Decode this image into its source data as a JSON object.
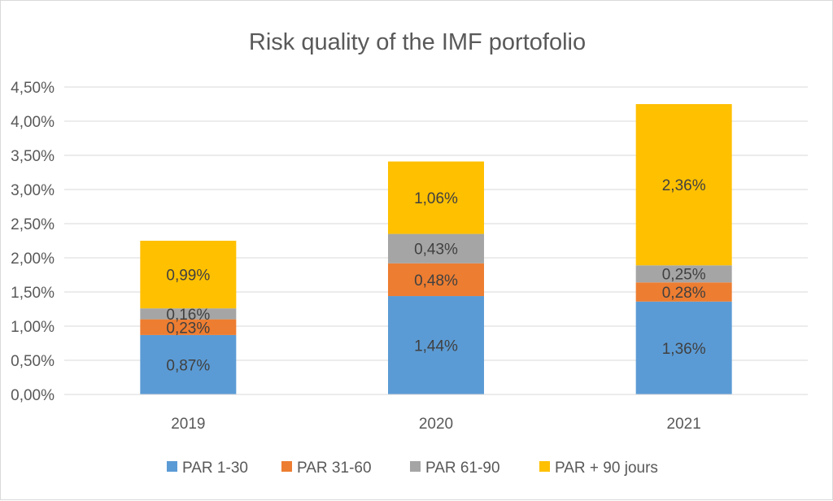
{
  "chart_data": {
    "type": "bar",
    "stacked": true,
    "title": "Risk quality of the IMF portofolio",
    "categories": [
      "2019",
      "2020",
      "2021"
    ],
    "series": [
      {
        "name": "PAR 1-30",
        "color": "#5b9bd5",
        "values": [
          0.87,
          1.44,
          1.36
        ],
        "labels": [
          "0,87%",
          "1,44%",
          "1,36%"
        ]
      },
      {
        "name": "PAR 31-60",
        "color": "#ed7d31",
        "values": [
          0.23,
          0.48,
          0.28
        ],
        "labels": [
          "0,23%",
          "0,48%",
          "0,28%"
        ]
      },
      {
        "name": "PAR 61-90",
        "color": "#a5a5a5",
        "values": [
          0.16,
          0.43,
          0.25
        ],
        "labels": [
          "0,16%",
          "0,43%",
          "0,25%"
        ]
      },
      {
        "name": "PAR + 90 jours",
        "color": "#ffc000",
        "values": [
          0.99,
          1.06,
          2.36
        ],
        "labels": [
          "0,99%",
          "1,06%",
          "2,36%"
        ]
      }
    ],
    "ylim": [
      0,
      4.5
    ],
    "y_ticks": [
      0,
      0.5,
      1.0,
      1.5,
      2.0,
      2.5,
      3.0,
      3.5,
      4.0,
      4.5
    ],
    "y_tick_labels": [
      "0,00%",
      "0,50%",
      "1,00%",
      "1,50%",
      "2,00%",
      "2,50%",
      "3,00%",
      "3,50%",
      "4,00%",
      "4,50%"
    ],
    "grid": true,
    "legend_position": "bottom"
  }
}
